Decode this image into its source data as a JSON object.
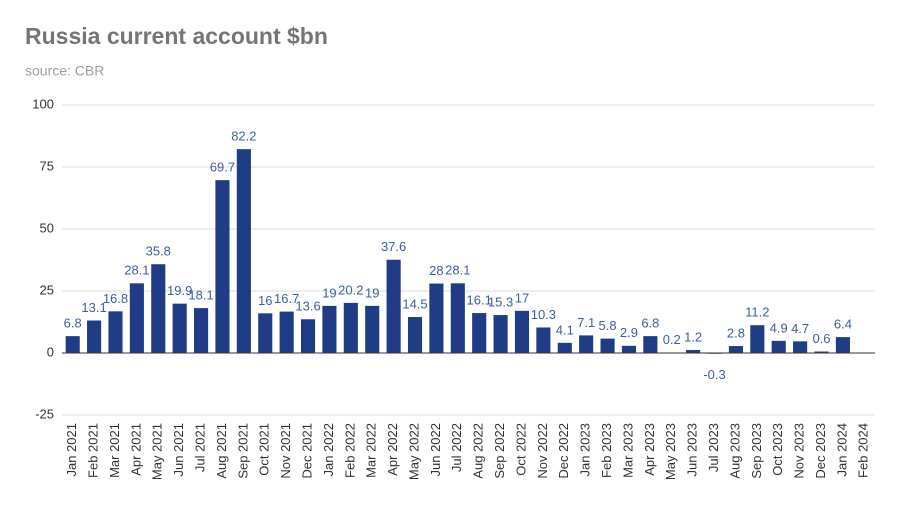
{
  "chart_data": {
    "type": "bar",
    "title": "Russia current account $bn",
    "subtitle": "source: CBR",
    "categories": [
      "Jan 2021",
      "Feb 2021",
      "Mar 2021",
      "Apr 2021",
      "May 2021",
      "Jun 2021",
      "Jul 2021",
      "Aug 2021",
      "Sep 2021",
      "Oct 2021",
      "Nov 2021",
      "Dec 2021",
      "Jan 2022",
      "Feb 2022",
      "Mar 2022",
      "Apr 2022",
      "May 2022",
      "Jun 2022",
      "Jul 2022",
      "Aug 2022",
      "Sep 2022",
      "Oct 2022",
      "Nov 2022",
      "Dec 2022",
      "Jan 2023",
      "Feb 2023",
      "Mar 2023",
      "Apr 2023",
      "May 2023",
      "Jun 2023",
      "Jul 2023",
      "Aug 2023",
      "Sep 2023",
      "Oct 2023",
      "Nov 2023",
      "Dec 2023",
      "Jan 2024",
      "Feb 2024"
    ],
    "values": [
      6.8,
      13.1,
      16.8,
      28.1,
      35.8,
      19.9,
      18.1,
      69.7,
      82.2,
      16,
      16.7,
      13.6,
      19,
      20.2,
      19,
      37.6,
      14.5,
      28,
      28.1,
      16.1,
      15.3,
      17,
      10.3,
      4.1,
      7.1,
      5.8,
      2.9,
      6.8,
      0.2,
      1.2,
      -0.3,
      2.8,
      11.2,
      4.9,
      4.7,
      0.6,
      6.4,
      null
    ],
    "color": "#1f3d87",
    "ylim": [
      -25,
      100
    ],
    "yticks": [
      -25,
      0,
      25,
      50,
      75,
      100
    ],
    "grid": true
  }
}
